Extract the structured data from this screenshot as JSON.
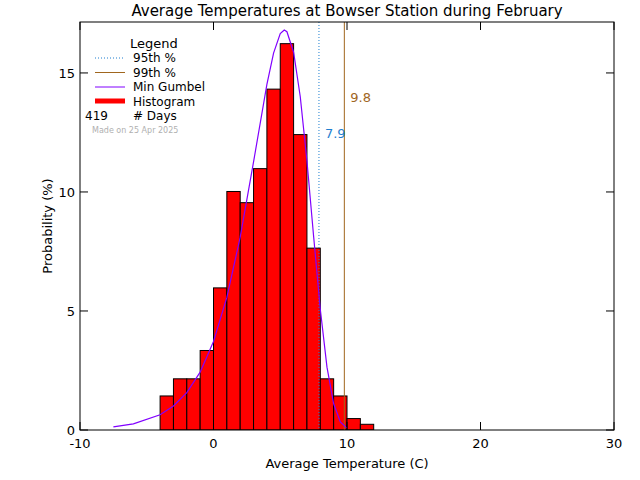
{
  "chart_data": {
    "type": "histogram",
    "title": "Average Temperatures at Bowser Station during February",
    "x_label": "Average Temperature (C)",
    "y_label": "Probability  (%)",
    "name": "Histogram",
    "color": "#ff0000",
    "bins": [
      -4,
      -3,
      -2,
      -1,
      0,
      1,
      2,
      3,
      4,
      5,
      6,
      7,
      8,
      9,
      10,
      11,
      12
    ],
    "values": [
      1.43,
      2.15,
      2.15,
      3.34,
      5.97,
      10.02,
      9.55,
      10.98,
      14.32,
      16.23,
      12.41,
      7.64,
      2.15,
      1.43,
      0.48,
      0.24
    ],
    "series": [
      {
        "name": "Min Gumbel",
        "type": "line",
        "color": "#8000ff",
        "x": [
          -7.5,
          -6,
          -4,
          -3,
          -2,
          -1,
          0,
          1,
          2,
          3,
          4,
          4.5,
          5,
          5.3,
          5.5,
          6,
          6.5,
          7,
          7.5,
          8,
          8.5,
          9,
          9.5,
          10
        ],
        "values": [
          0.13,
          0.26,
          0.64,
          1.01,
          1.57,
          2.43,
          3.72,
          5.57,
          8.1,
          11.26,
          14.52,
          15.83,
          16.65,
          16.8,
          16.73,
          15.87,
          14.0,
          11.3,
          8.13,
          5.07,
          2.64,
          1.1,
          0.34,
          0.08
        ]
      }
    ],
    "reference_lines": [
      {
        "name": "95th %",
        "value": 7.9,
        "color": "#1f7fd0",
        "line_style": "dotted"
      },
      {
        "name": "99th %",
        "value": 9.8,
        "color": "#a0661e",
        "line_style": "solid"
      }
    ],
    "legend": "upper left",
    "legend_title": "Legend",
    "count": {
      "value": 419,
      "label": "# Days"
    },
    "note": "Made on 25 Apr 2025",
    "xlim": [
      -10,
      30
    ],
    "ylim": [
      0,
      17.14
    ],
    "xticks": [
      -10,
      0,
      10,
      20,
      30
    ],
    "yticks": [
      0,
      5,
      10,
      15
    ]
  }
}
